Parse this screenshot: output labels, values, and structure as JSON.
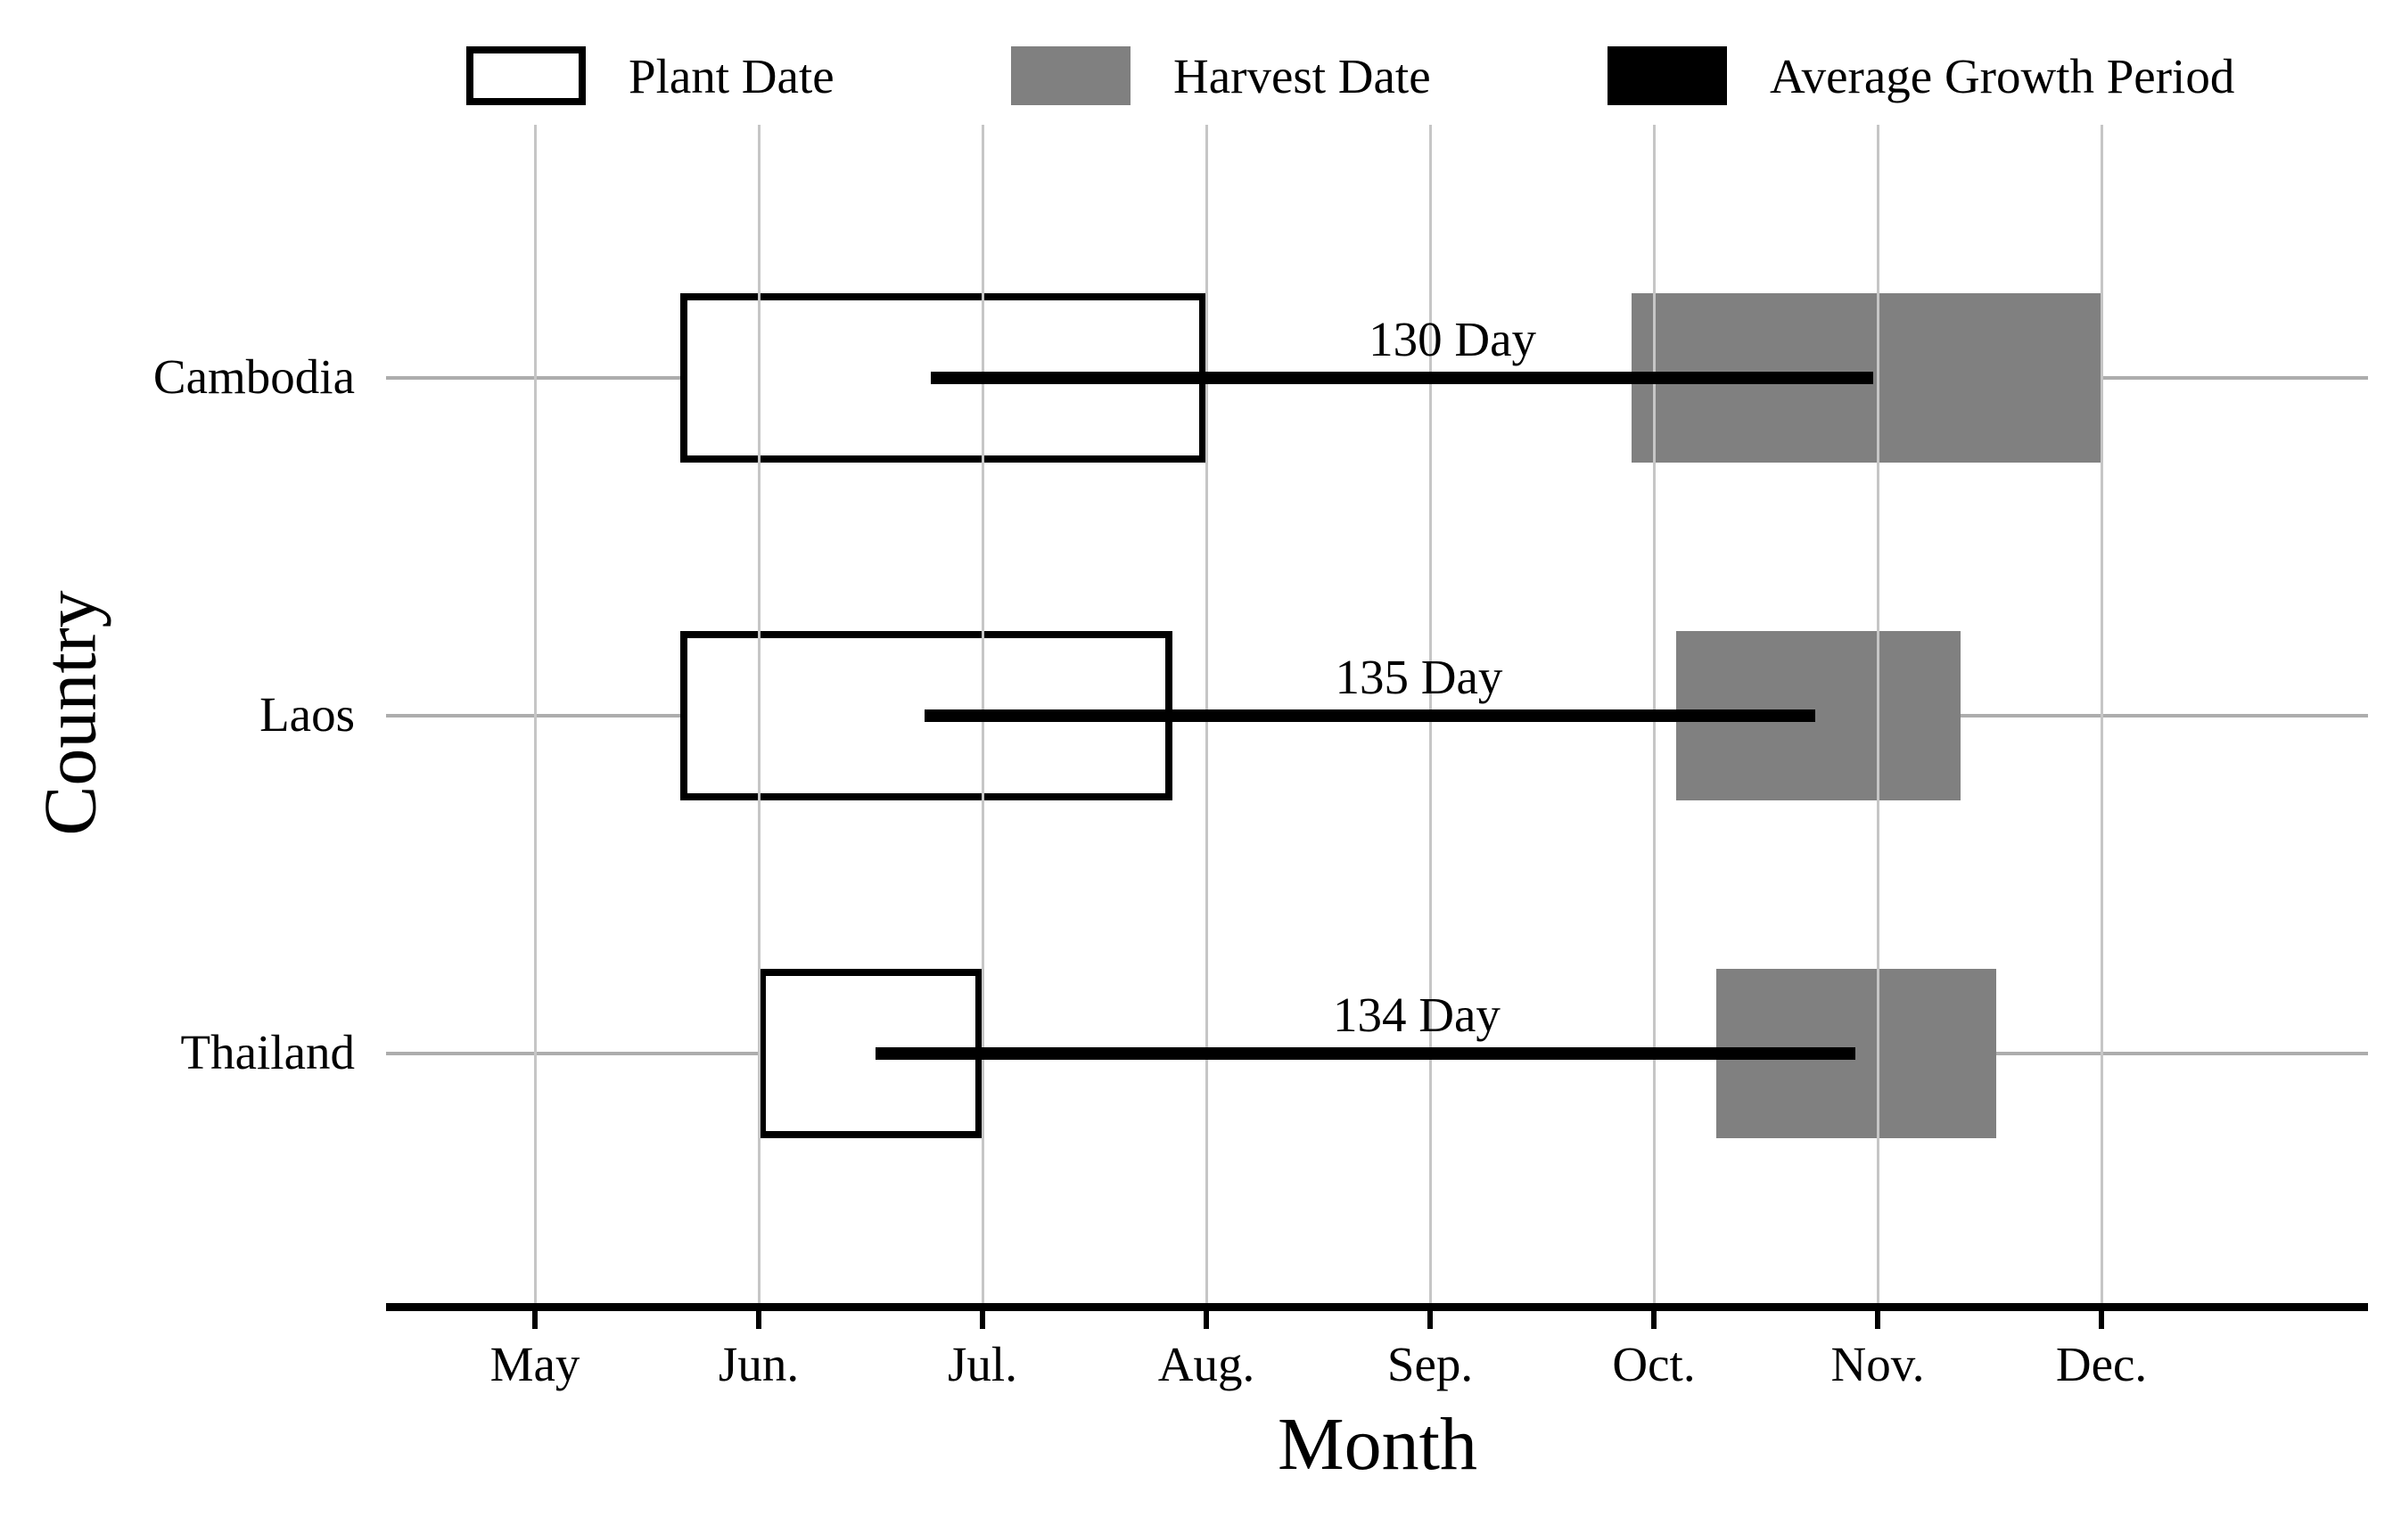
{
  "legend": {
    "items": [
      {
        "label": "Plant Date"
      },
      {
        "label": "Harvest Date"
      },
      {
        "label": "Average Growth Period"
      }
    ]
  },
  "axes": {
    "x_title": "Month",
    "y_title": "Country",
    "x_tick_labels": [
      "May",
      "Jun.",
      "Jul.",
      "Aug.",
      "Sep.",
      "Oct.",
      "Nov.",
      "Dec."
    ]
  },
  "colors": {
    "background": "#ffffff",
    "text": "#000000",
    "plant_fill": "#ffffff",
    "plant_border": "#000000",
    "harvest_fill": "#808080",
    "growth_line": "#000000",
    "grid_vertical": "#c6c6c6",
    "grid_horizontal": "#adadad"
  },
  "chart_data": {
    "type": "gantt",
    "title": "",
    "xlabel": "Month",
    "ylabel": "Country",
    "x_ticks": [
      "May",
      "Jun.",
      "Jul.",
      "Aug.",
      "Sep.",
      "Oct.",
      "Nov.",
      "Dec."
    ],
    "x_unit_note": "month units read off the axis: 0 = May 1, 1 = Jun 1, 2 = Jul 1, ...",
    "grid": true,
    "legend_position": "top",
    "categories": [
      "Cambodia",
      "Laos",
      "Thailand"
    ],
    "series": [
      {
        "name": "Plant Date",
        "ranges_month_units": [
          [
            0.65,
            3.0
          ],
          [
            0.65,
            2.85
          ],
          [
            1.0,
            2.0
          ]
        ],
        "approx_dates": [
          "~May 20 – Jul 31",
          "~May 20 – Jul 26",
          "~Jun 1 – Jul 1"
        ]
      },
      {
        "name": "Harvest Date",
        "ranges_month_units": [
          [
            4.9,
            7.0
          ],
          [
            5.1,
            6.37
          ],
          [
            5.28,
            6.53
          ]
        ],
        "approx_dates": [
          "~Sep 27 – Nov 30",
          "~Oct 3 – Nov 12",
          "~Oct 9 – Nov 16"
        ]
      },
      {
        "name": "Average Growth Period",
        "ranges_month_units": [
          [
            1.77,
            5.98
          ],
          [
            1.74,
            5.72
          ],
          [
            1.52,
            5.9
          ]
        ],
        "days": [
          130,
          135,
          134
        ],
        "labels": [
          "130 Day",
          "135 Day",
          "134 Day"
        ],
        "label_center_month_units": [
          4.1,
          3.95,
          3.94
        ]
      }
    ]
  }
}
